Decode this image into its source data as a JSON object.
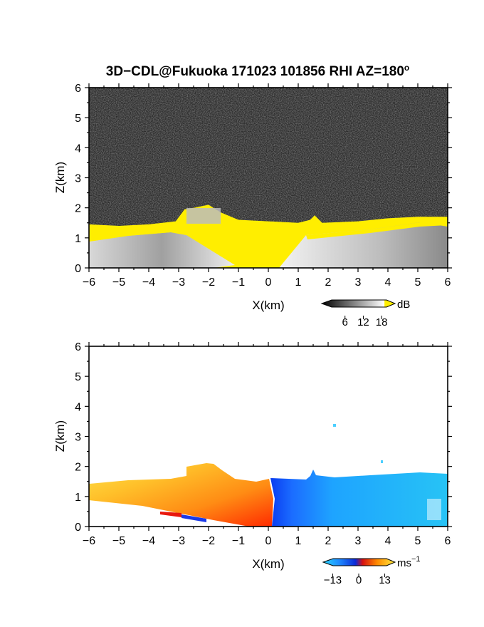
{
  "figure": {
    "title": "3D−CDL@Fukuoka 171023 101856 RHI AZ=180",
    "title_superscript": "o"
  },
  "colors": {
    "snr_noise": "#2a2a2a",
    "snr_highlight": "#ffee00",
    "velocity_background": "#ffffff"
  },
  "chart_data": [
    {
      "type": "heatmap",
      "panel": "snr",
      "xlabel": "X(km)",
      "ylabel": "Z(km)",
      "xlim": [
        -6,
        6
      ],
      "ylim": [
        0,
        6
      ],
      "x_ticks": [
        "−6",
        "−5",
        "−4",
        "−3",
        "−2",
        "−1",
        "0",
        "1",
        "2",
        "3",
        "4",
        "5",
        "6"
      ],
      "y_ticks": [
        "0",
        "1",
        "2",
        "3",
        "4",
        "5",
        "6"
      ],
      "grid": false,
      "colorbar": {
        "unit": "dB",
        "ticks": [
          "6",
          "12",
          "18"
        ],
        "range": [
          0,
          21
        ],
        "colormap": "grayscale with yellow above 18 dB"
      },
      "echo_top_km": [
        {
          "x": -6.0,
          "top": 1.45
        },
        {
          "x": -5.0,
          "top": 1.4
        },
        {
          "x": -4.0,
          "top": 1.45
        },
        {
          "x": -3.1,
          "top": 1.55
        },
        {
          "x": -2.8,
          "top": 1.95
        },
        {
          "x": -2.5,
          "top": 2.0
        },
        {
          "x": -2.0,
          "top": 2.1
        },
        {
          "x": -1.6,
          "top": 1.85
        },
        {
          "x": -1.0,
          "top": 1.6
        },
        {
          "x": 0.0,
          "top": 1.55
        },
        {
          "x": 1.0,
          "top": 1.5
        },
        {
          "x": 1.4,
          "top": 1.6
        },
        {
          "x": 1.55,
          "top": 1.75
        },
        {
          "x": 1.8,
          "top": 1.5
        },
        {
          "x": 3.0,
          "top": 1.55
        },
        {
          "x": 4.0,
          "top": 1.65
        },
        {
          "x": 5.0,
          "top": 1.7
        },
        {
          "x": 6.0,
          "top": 1.7
        }
      ]
    },
    {
      "type": "heatmap",
      "panel": "doppler_velocity",
      "xlabel": "X(km)",
      "ylabel": "Z(km)",
      "xlim": [
        -6,
        6
      ],
      "ylim": [
        0,
        6
      ],
      "x_ticks": [
        "−6",
        "−5",
        "−4",
        "−3",
        "−2",
        "−1",
        "0",
        "1",
        "2",
        "3",
        "4",
        "5",
        "6"
      ],
      "y_ticks": [
        "0",
        "1",
        "2",
        "3",
        "4",
        "5",
        "6"
      ],
      "grid": false,
      "colorbar": {
        "unit": "ms",
        "unit_superscript": "−1",
        "ticks": [
          "−13",
          "0",
          "13"
        ],
        "range": [
          -16,
          16
        ],
        "colormap": "cyan-blue (negative) to red-orange-yellow (positive)"
      },
      "regions": [
        {
          "name": "positive",
          "x_range": [
            -6,
            0.1
          ],
          "velocity_ms": 10
        },
        {
          "name": "negative",
          "x_range": [
            0.1,
            6
          ],
          "velocity_ms": -11
        }
      ],
      "isolated_pixels_km": [
        {
          "x": 2.25,
          "z": 3.35
        },
        {
          "x": 3.75,
          "z": 2.1
        }
      ]
    }
  ]
}
